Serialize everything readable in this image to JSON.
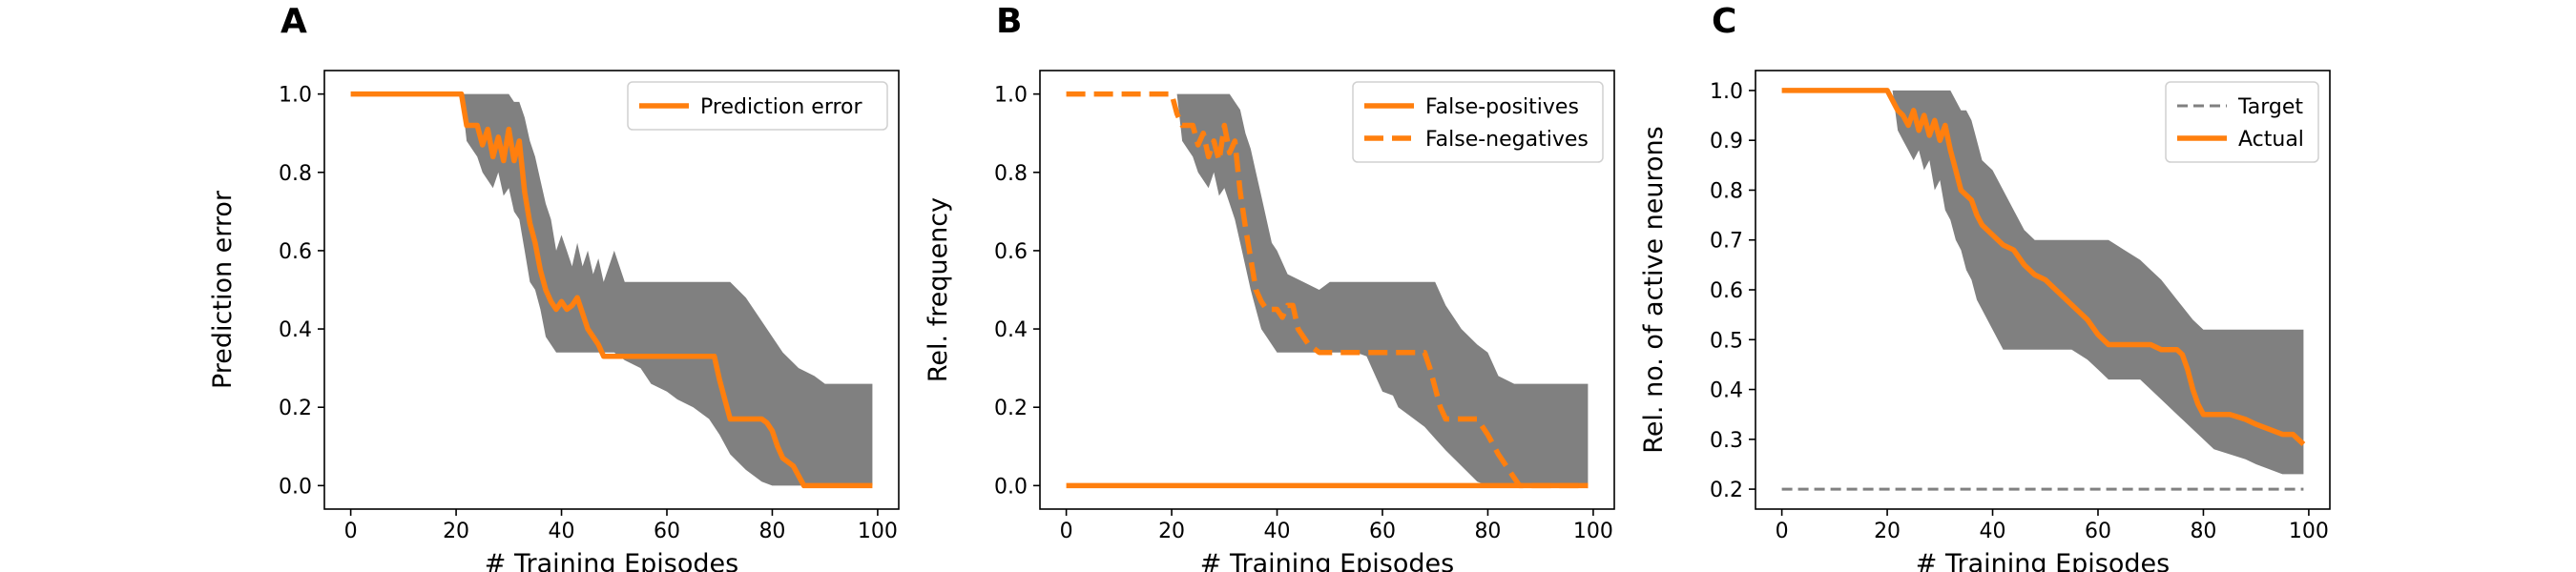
{
  "figure": {
    "panel_letters": [
      "A",
      "B",
      "C"
    ]
  },
  "colors": {
    "orange": "#ff7f0e",
    "band": "#808080",
    "target": "#808080",
    "axis": "#000000"
  },
  "chart_data": [
    {
      "type": "line",
      "panel": "A",
      "xlabel": "# Training Episodes",
      "ylabel": "Prediction error",
      "xlim": [
        -5,
        104
      ],
      "ylim": [
        -0.06,
        1.06
      ],
      "xticks": [
        0,
        20,
        40,
        60,
        80,
        100
      ],
      "yticks": [
        0.0,
        0.2,
        0.4,
        0.6,
        0.8,
        1.0
      ],
      "ytick_labels": [
        "0.0",
        "0.2",
        "0.4",
        "0.6",
        "0.8",
        "1.0"
      ],
      "grid": false,
      "legend": "top-right",
      "band": {
        "x": [
          0,
          21,
          22,
          23,
          24,
          25,
          26,
          27,
          28,
          29,
          30,
          31,
          32,
          33,
          34,
          35,
          36,
          37,
          38,
          39,
          40,
          41,
          42,
          43,
          44,
          45,
          46,
          47,
          48,
          50,
          52,
          55,
          57,
          60,
          62,
          65,
          68,
          70,
          72,
          75,
          78,
          80,
          82,
          85,
          88,
          90,
          92,
          95,
          99
        ],
        "lower": [
          1.0,
          1.0,
          0.88,
          0.86,
          0.84,
          0.8,
          0.78,
          0.76,
          0.8,
          0.74,
          0.76,
          0.7,
          0.68,
          0.6,
          0.52,
          0.5,
          0.45,
          0.38,
          0.36,
          0.34,
          0.34,
          0.34,
          0.34,
          0.34,
          0.34,
          0.34,
          0.34,
          0.34,
          0.34,
          0.34,
          0.32,
          0.3,
          0.26,
          0.24,
          0.22,
          0.2,
          0.17,
          0.13,
          0.08,
          0.04,
          0.01,
          0.0,
          0.0,
          0.0,
          0.0,
          0.0,
          0.0,
          0.0,
          0.0
        ],
        "upper": [
          1.0,
          1.0,
          1.0,
          1.0,
          1.0,
          1.0,
          1.0,
          1.0,
          1.0,
          1.0,
          1.0,
          0.98,
          0.98,
          0.94,
          0.88,
          0.84,
          0.78,
          0.72,
          0.68,
          0.6,
          0.64,
          0.6,
          0.56,
          0.62,
          0.56,
          0.6,
          0.54,
          0.58,
          0.52,
          0.6,
          0.52,
          0.52,
          0.52,
          0.52,
          0.52,
          0.52,
          0.52,
          0.52,
          0.52,
          0.48,
          0.42,
          0.38,
          0.34,
          0.3,
          0.28,
          0.26,
          0.26,
          0.26,
          0.26
        ]
      },
      "series": [
        {
          "name": "Prediction error",
          "style": "solid",
          "x": [
            0,
            21,
            22,
            23,
            24,
            25,
            26,
            27,
            28,
            29,
            30,
            31,
            32,
            33,
            34,
            35,
            36,
            37,
            38,
            39,
            40,
            41,
            42,
            43,
            44,
            45,
            46,
            47,
            48,
            50,
            55,
            60,
            65,
            68,
            69,
            70,
            71,
            72,
            75,
            78,
            79,
            80,
            81,
            82,
            84,
            86,
            90,
            95,
            99
          ],
          "y": [
            1.0,
            1.0,
            0.92,
            0.92,
            0.92,
            0.87,
            0.91,
            0.84,
            0.89,
            0.83,
            0.91,
            0.83,
            0.88,
            0.75,
            0.67,
            0.62,
            0.55,
            0.5,
            0.47,
            0.45,
            0.47,
            0.45,
            0.46,
            0.48,
            0.44,
            0.4,
            0.38,
            0.36,
            0.33,
            0.33,
            0.33,
            0.33,
            0.33,
            0.33,
            0.33,
            0.27,
            0.22,
            0.17,
            0.17,
            0.17,
            0.16,
            0.14,
            0.1,
            0.07,
            0.05,
            0.0,
            0.0,
            0.0,
            0.0
          ]
        }
      ]
    },
    {
      "type": "line",
      "panel": "B",
      "xlabel": "# Training Episodes",
      "ylabel": "Rel. frequency",
      "xlim": [
        -5,
        104
      ],
      "ylim": [
        -0.06,
        1.06
      ],
      "xticks": [
        0,
        20,
        40,
        60,
        80,
        100
      ],
      "yticks": [
        0.0,
        0.2,
        0.4,
        0.6,
        0.8,
        1.0
      ],
      "ytick_labels": [
        "0.0",
        "0.2",
        "0.4",
        "0.6",
        "0.8",
        "1.0"
      ],
      "grid": false,
      "legend": "top-right",
      "band": {
        "x": [
          0,
          21,
          22,
          23,
          24,
          25,
          26,
          27,
          28,
          29,
          30,
          31,
          32,
          33,
          34,
          35,
          36,
          37,
          38,
          39,
          40,
          42,
          45,
          48,
          50,
          53,
          55,
          57,
          58,
          60,
          62,
          63,
          65,
          68,
          70,
          72,
          75,
          78,
          80,
          82,
          85,
          88,
          90,
          95,
          99
        ],
        "lower": [
          1.0,
          1.0,
          0.88,
          0.86,
          0.84,
          0.8,
          0.78,
          0.76,
          0.8,
          0.74,
          0.76,
          0.72,
          0.68,
          0.62,
          0.56,
          0.5,
          0.45,
          0.4,
          0.38,
          0.36,
          0.34,
          0.34,
          0.34,
          0.34,
          0.34,
          0.34,
          0.34,
          0.33,
          0.3,
          0.24,
          0.23,
          0.2,
          0.18,
          0.15,
          0.12,
          0.09,
          0.05,
          0.01,
          0.0,
          0.0,
          0.0,
          0.0,
          0.0,
          0.0,
          0.0
        ],
        "upper": [
          1.0,
          1.0,
          1.0,
          1.0,
          1.0,
          1.0,
          1.0,
          1.0,
          1.0,
          1.0,
          1.0,
          1.0,
          0.98,
          0.96,
          0.9,
          0.86,
          0.8,
          0.74,
          0.68,
          0.62,
          0.6,
          0.54,
          0.52,
          0.5,
          0.52,
          0.52,
          0.52,
          0.52,
          0.52,
          0.52,
          0.52,
          0.52,
          0.52,
          0.52,
          0.52,
          0.46,
          0.4,
          0.36,
          0.34,
          0.28,
          0.26,
          0.26,
          0.26,
          0.26,
          0.26
        ]
      },
      "series": [
        {
          "name": "False-positives",
          "style": "solid",
          "x": [
            0,
            99
          ],
          "y": [
            0.0,
            0.0
          ]
        },
        {
          "name": "False-negatives",
          "style": "dashed",
          "x": [
            0,
            20,
            21,
            22,
            23,
            24,
            25,
            26,
            27,
            28,
            29,
            30,
            31,
            32,
            33,
            34,
            35,
            36,
            37,
            38,
            39,
            40,
            41,
            42,
            43,
            44,
            45,
            46,
            47,
            48,
            55,
            60,
            65,
            68,
            69,
            70,
            71,
            72,
            75,
            78,
            80,
            82,
            84,
            86,
            90,
            95,
            99
          ],
          "y": [
            1.0,
            1.0,
            0.95,
            0.92,
            0.92,
            0.92,
            0.87,
            0.9,
            0.84,
            0.88,
            0.83,
            0.92,
            0.85,
            0.88,
            0.75,
            0.66,
            0.58,
            0.5,
            0.47,
            0.45,
            0.45,
            0.45,
            0.43,
            0.46,
            0.46,
            0.4,
            0.38,
            0.36,
            0.35,
            0.34,
            0.34,
            0.34,
            0.34,
            0.34,
            0.3,
            0.25,
            0.2,
            0.17,
            0.17,
            0.17,
            0.13,
            0.08,
            0.04,
            0.0,
            0.0,
            0.0,
            0.0
          ]
        }
      ]
    },
    {
      "type": "line",
      "panel": "C",
      "xlabel": "# Training Episodes",
      "ylabel": "Rel. no. of active neurons",
      "xlim": [
        -5,
        104
      ],
      "ylim": [
        0.16,
        1.04
      ],
      "xticks": [
        0,
        20,
        40,
        60,
        80,
        100
      ],
      "yticks": [
        0.2,
        0.3,
        0.4,
        0.5,
        0.6,
        0.7,
        0.8,
        0.9,
        1.0
      ],
      "ytick_labels": [
        "0.2",
        "0.3",
        "0.4",
        "0.5",
        "0.6",
        "0.7",
        "0.8",
        "0.9",
        "1.0"
      ],
      "grid": false,
      "legend": "top-right",
      "band": {
        "x": [
          0,
          21,
          22,
          23,
          24,
          25,
          26,
          27,
          28,
          29,
          30,
          31,
          32,
          33,
          34,
          35,
          36,
          37,
          38,
          40,
          42,
          44,
          46,
          48,
          50,
          52,
          55,
          58,
          60,
          62,
          65,
          68,
          70,
          72,
          75,
          78,
          80,
          82,
          85,
          88,
          90,
          95,
          99
        ],
        "lower": [
          1.0,
          1.0,
          0.92,
          0.9,
          0.88,
          0.86,
          0.88,
          0.84,
          0.86,
          0.8,
          0.82,
          0.76,
          0.74,
          0.7,
          0.68,
          0.64,
          0.62,
          0.58,
          0.56,
          0.52,
          0.48,
          0.48,
          0.48,
          0.48,
          0.48,
          0.48,
          0.48,
          0.46,
          0.44,
          0.42,
          0.42,
          0.42,
          0.4,
          0.38,
          0.35,
          0.32,
          0.3,
          0.28,
          0.27,
          0.26,
          0.25,
          0.23,
          0.23
        ],
        "upper": [
          1.0,
          1.0,
          1.0,
          1.0,
          1.0,
          1.0,
          1.0,
          1.0,
          1.0,
          1.0,
          1.0,
          1.0,
          1.0,
          0.98,
          0.96,
          0.96,
          0.94,
          0.9,
          0.86,
          0.84,
          0.8,
          0.76,
          0.72,
          0.7,
          0.7,
          0.7,
          0.7,
          0.7,
          0.7,
          0.7,
          0.68,
          0.66,
          0.64,
          0.62,
          0.58,
          0.54,
          0.52,
          0.52,
          0.52,
          0.52,
          0.52,
          0.52,
          0.52
        ]
      },
      "series": [
        {
          "name": "Target",
          "style": "dashed-thin",
          "x": [
            0,
            99
          ],
          "y": [
            0.2,
            0.2
          ]
        },
        {
          "name": "Actual",
          "style": "solid",
          "x": [
            0,
            20,
            21,
            22,
            23,
            24,
            25,
            26,
            27,
            28,
            29,
            30,
            31,
            32,
            33,
            34,
            35,
            36,
            37,
            38,
            40,
            42,
            44,
            46,
            48,
            50,
            52,
            55,
            58,
            60,
            62,
            65,
            68,
            70,
            72,
            75,
            76,
            77,
            78,
            79,
            80,
            85,
            88,
            90,
            95,
            97,
            99
          ],
          "y": [
            1.0,
            1.0,
            0.98,
            0.96,
            0.95,
            0.93,
            0.96,
            0.92,
            0.95,
            0.91,
            0.94,
            0.9,
            0.93,
            0.88,
            0.84,
            0.8,
            0.79,
            0.78,
            0.75,
            0.73,
            0.71,
            0.69,
            0.68,
            0.65,
            0.63,
            0.62,
            0.6,
            0.57,
            0.54,
            0.51,
            0.49,
            0.49,
            0.49,
            0.49,
            0.48,
            0.48,
            0.47,
            0.44,
            0.4,
            0.37,
            0.35,
            0.35,
            0.34,
            0.33,
            0.31,
            0.31,
            0.29
          ]
        }
      ]
    }
  ]
}
